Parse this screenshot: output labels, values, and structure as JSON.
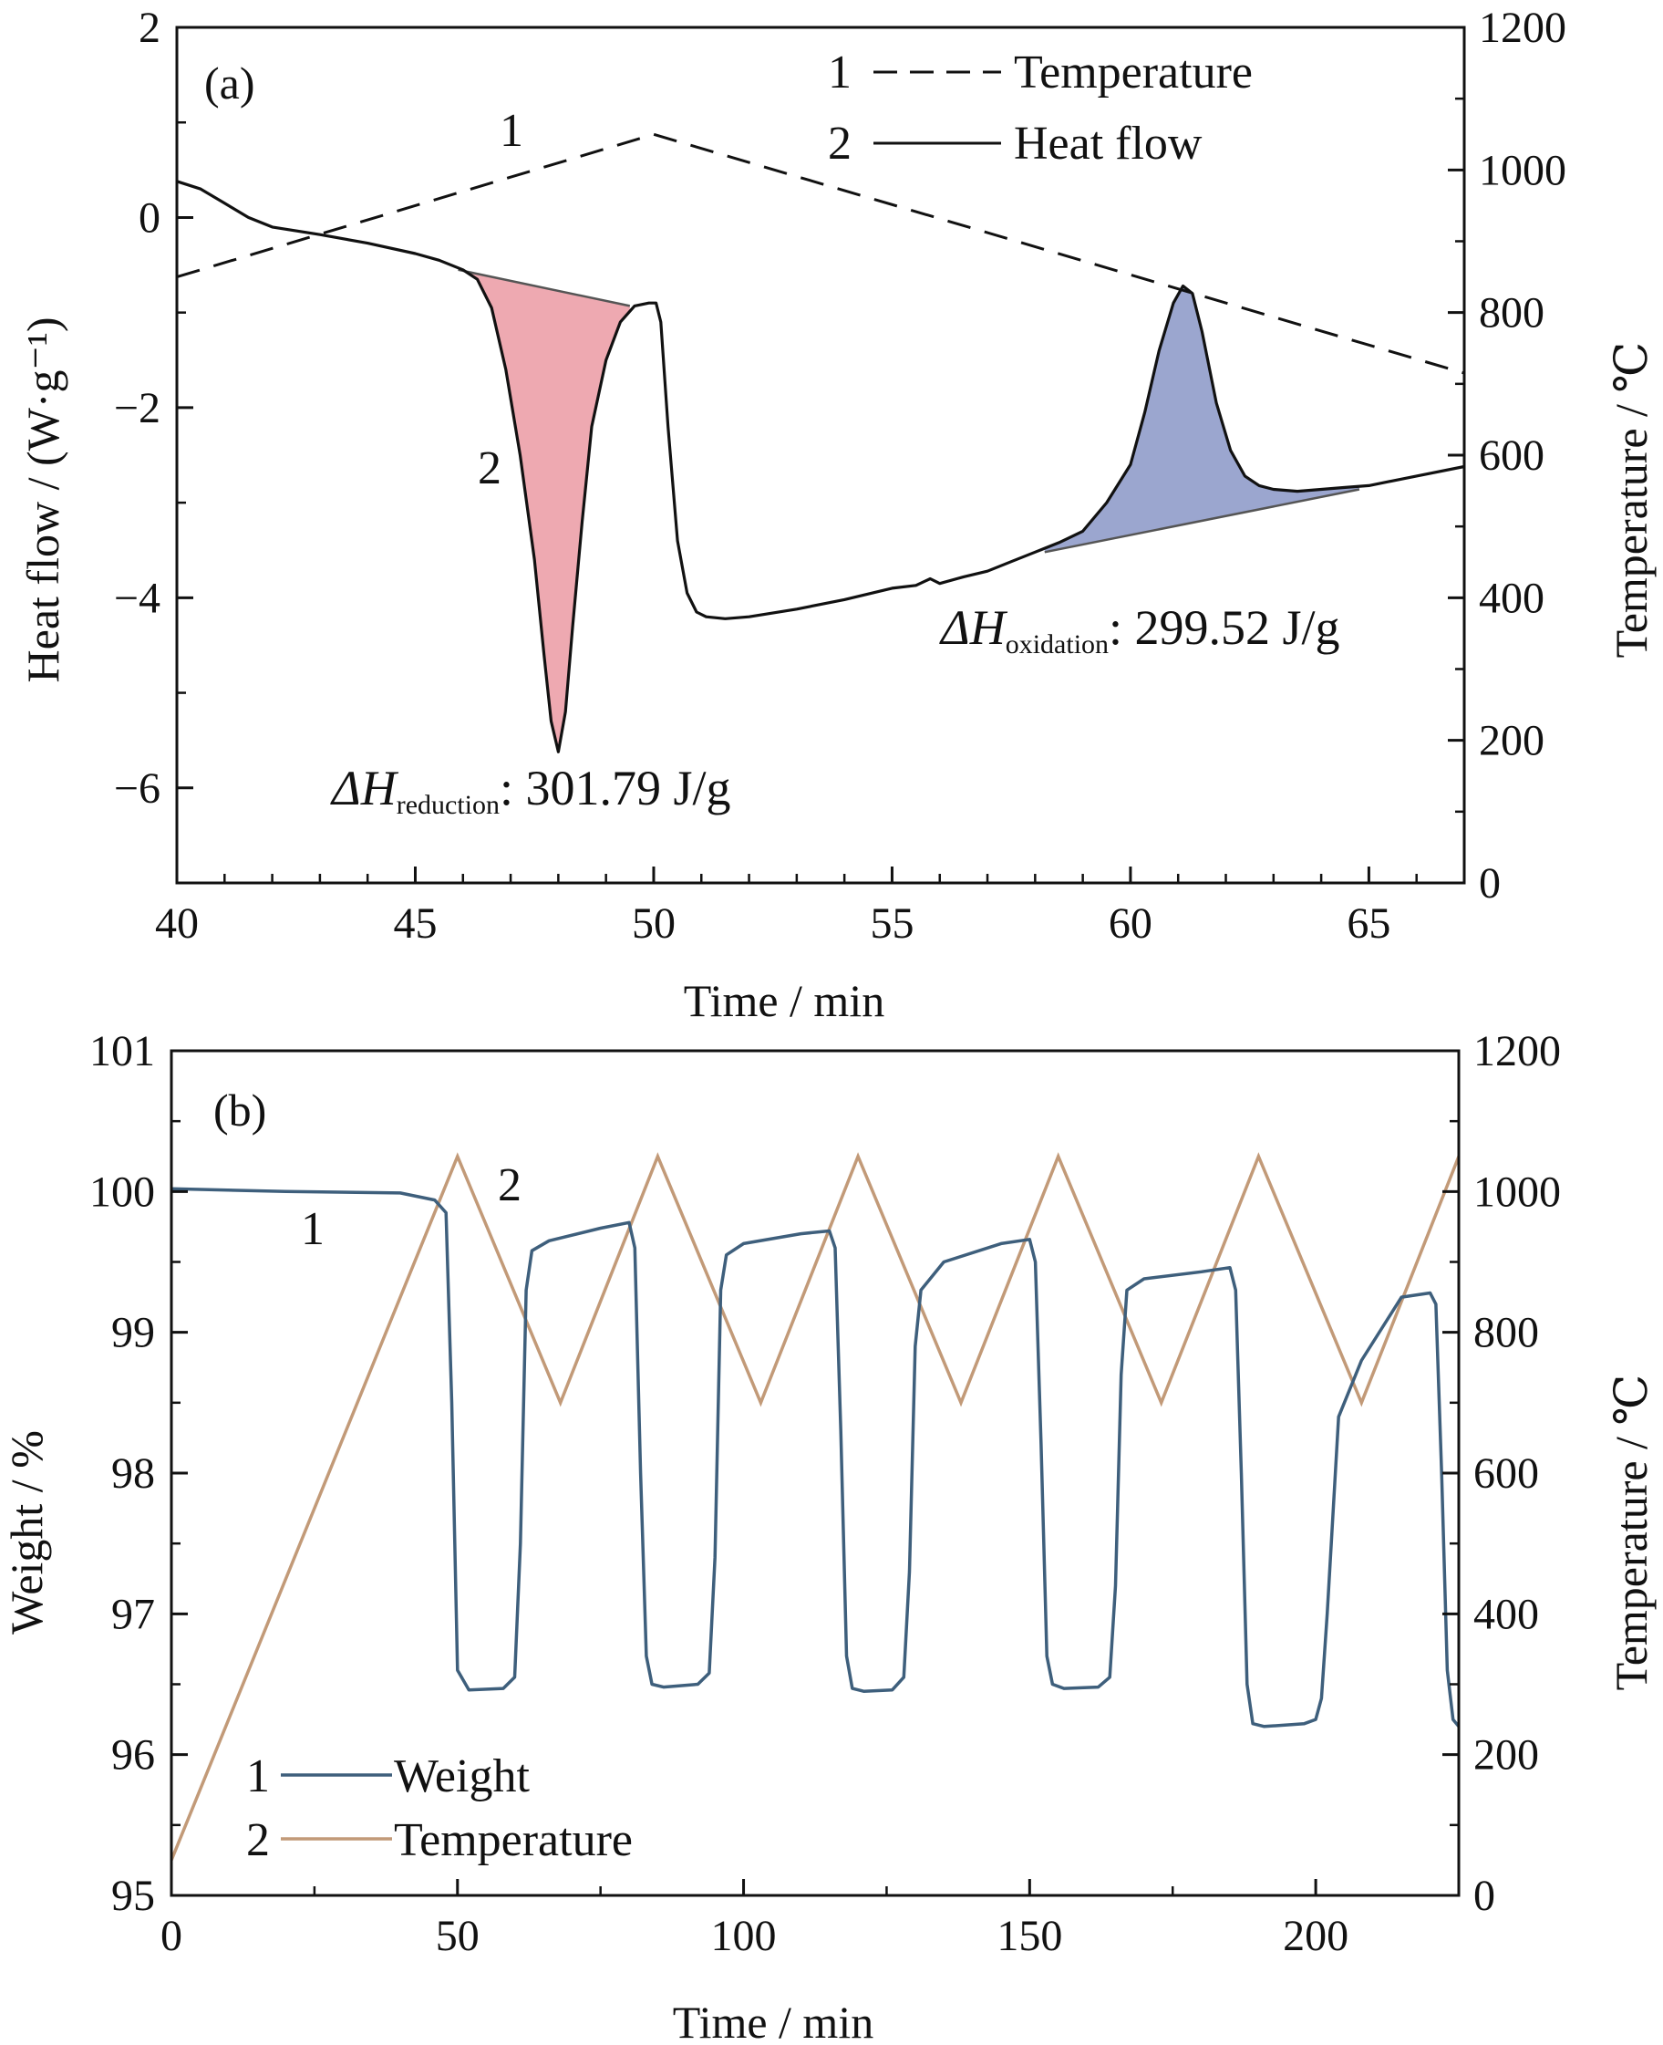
{
  "colors": {
    "axis": "#111111",
    "weight": "#3e5f7c",
    "temperature_b": "#c29a78",
    "reduction_fill": "#eea9b1",
    "oxidation_fill": "#9ba6cf"
  },
  "chart_data": [
    {
      "type": "line",
      "panel_label": "(a)",
      "xlabel": "Time / min",
      "ylabel": "Heat flow / (W·g⁻¹)",
      "y2label": "Temperature / ℃",
      "xlim": [
        40,
        67
      ],
      "ylim": [
        -7,
        2
      ],
      "y2lim": [
        0,
        1200
      ],
      "xticks": [
        40,
        45,
        50,
        55,
        60,
        65
      ],
      "xtick_labels": [
        "40",
        "45",
        "50",
        "55",
        "60",
        "65"
      ],
      "yticks": [
        2,
        0,
        -2,
        -4,
        -6
      ],
      "ytick_labels": [
        "2",
        "0",
        "−2",
        "−4",
        "−6"
      ],
      "y2ticks": [
        1200,
        1000,
        800,
        600,
        400,
        200,
        0
      ],
      "y2tick_labels": [
        "1200",
        "1000",
        "800",
        "600",
        "400",
        "200",
        "0"
      ],
      "series": [
        {
          "name": "Temperature",
          "label": "1",
          "axis": "right",
          "style": "dashed",
          "x": [
            40,
            50,
            67
          ],
          "y": [
            850,
            1050,
            715
          ]
        },
        {
          "name": "Heat flow",
          "label": "2",
          "axis": "left",
          "style": "solid",
          "x": [
            40,
            40.5,
            41,
            41.5,
            42,
            43,
            44,
            45,
            45.5,
            46,
            46.3,
            46.6,
            46.9,
            47.2,
            47.5,
            47.7,
            47.85,
            48,
            48.15,
            48.3,
            48.5,
            48.7,
            49,
            49.3,
            49.6,
            49.9,
            50.05,
            50.15,
            50.3,
            50.5,
            50.7,
            50.9,
            51.1,
            51.5,
            52,
            53,
            54,
            55,
            55.5,
            55.8,
            56,
            56.5,
            57,
            57.5,
            58,
            58.5,
            59,
            59.5,
            60,
            60.3,
            60.6,
            60.9,
            61.1,
            61.3,
            61.5,
            61.8,
            62.1,
            62.4,
            62.7,
            63,
            63.5,
            64,
            64.5,
            65,
            66,
            67
          ],
          "y": [
            0.38,
            0.3,
            0.15,
            0.0,
            -0.1,
            -0.18,
            -0.27,
            -0.38,
            -0.45,
            -0.55,
            -0.65,
            -0.95,
            -1.6,
            -2.5,
            -3.6,
            -4.6,
            -5.3,
            -5.62,
            -5.2,
            -4.3,
            -3.2,
            -2.2,
            -1.5,
            -1.1,
            -0.93,
            -0.9,
            -0.9,
            -1.1,
            -2.2,
            -3.4,
            -3.95,
            -4.15,
            -4.2,
            -4.22,
            -4.2,
            -4.12,
            -4.02,
            -3.9,
            -3.87,
            -3.8,
            -3.85,
            -3.78,
            -3.72,
            -3.62,
            -3.52,
            -3.42,
            -3.3,
            -3.0,
            -2.6,
            -2.05,
            -1.4,
            -0.9,
            -0.72,
            -0.8,
            -1.2,
            -1.95,
            -2.45,
            -2.72,
            -2.82,
            -2.86,
            -2.88,
            -2.86,
            -2.84,
            -2.82,
            -2.72,
            -2.62
          ]
        }
      ],
      "areas": [
        {
          "name": "reduction",
          "annotation_prefix": "ΔH",
          "annotation_subscript": "reduction",
          "annotation_value": ": 301.79 J/g",
          "baseline_x": [
            45.9,
            49.5
          ],
          "baseline_y": [
            -0.55,
            -0.93
          ]
        },
        {
          "name": "oxidation",
          "annotation_prefix": "ΔH",
          "annotation_subscript": "oxidation",
          "annotation_value": ": 299.52 J/g",
          "baseline_x": [
            58.2,
            64.8
          ],
          "baseline_y": [
            -3.52,
            -2.86
          ]
        }
      ],
      "curve_labels": [
        {
          "text": "1",
          "x": 47.8,
          "y": 0.75
        },
        {
          "text": "2",
          "x": 46.7,
          "y": -2.6
        }
      ]
    },
    {
      "type": "line",
      "panel_label": "(b)",
      "xlabel": "Time / min",
      "ylabel": "Weight / %",
      "y2label": "Temperature / ℃",
      "xlim": [
        0,
        225
      ],
      "ylim": [
        95,
        101
      ],
      "y2lim": [
        0,
        1200
      ],
      "xticks": [
        0,
        50,
        100,
        150,
        200
      ],
      "xtick_labels": [
        "0",
        "50",
        "100",
        "150",
        "200"
      ],
      "yticks": [
        101,
        100,
        99,
        98,
        97,
        96,
        95
      ],
      "ytick_labels": [
        "101",
        "100",
        "99",
        "98",
        "97",
        "96",
        "95"
      ],
      "y2ticks": [
        1200,
        1000,
        800,
        600,
        400,
        200,
        0
      ],
      "y2tick_labels": [
        "1200",
        "1000",
        "800",
        "600",
        "400",
        "200",
        "0"
      ],
      "series": [
        {
          "name": "Weight",
          "label": "1",
          "axis": "left",
          "x": [
            0,
            20,
            40,
            46,
            48,
            49,
            50,
            52,
            58,
            60,
            61,
            62,
            63,
            66,
            75,
            80,
            81,
            82,
            83,
            84,
            86,
            92,
            94,
            95,
            96,
            97,
            100,
            110,
            115,
            116,
            117,
            118,
            119,
            121,
            126,
            128,
            129,
            130,
            131,
            135,
            145,
            150,
            151,
            152,
            153,
            154,
            156,
            162,
            164,
            165,
            166,
            167,
            170,
            180,
            185,
            186,
            187,
            188,
            189,
            191,
            198,
            200,
            201,
            202,
            204,
            208,
            215,
            220,
            221,
            222,
            223,
            224,
            225
          ],
          "y": [
            100.02,
            100.0,
            99.99,
            99.94,
            99.85,
            98.5,
            96.6,
            96.46,
            96.47,
            96.55,
            97.5,
            99.3,
            99.58,
            99.65,
            99.74,
            99.78,
            99.6,
            98.0,
            96.7,
            96.5,
            96.48,
            96.5,
            96.58,
            97.4,
            99.3,
            99.55,
            99.63,
            99.7,
            99.72,
            99.6,
            98.3,
            96.7,
            96.47,
            96.45,
            96.46,
            96.55,
            97.3,
            98.9,
            99.3,
            99.5,
            99.63,
            99.66,
            99.5,
            98.2,
            96.7,
            96.5,
            96.47,
            96.48,
            96.55,
            97.2,
            98.7,
            99.3,
            99.38,
            99.43,
            99.46,
            99.3,
            98.0,
            96.5,
            96.22,
            96.2,
            96.22,
            96.25,
            96.4,
            97.0,
            98.4,
            98.8,
            99.25,
            99.28,
            99.2,
            98.0,
            96.6,
            96.25,
            96.2
          ]
        },
        {
          "name": "Temperature",
          "label": "2",
          "axis": "right",
          "x": [
            0,
            50,
            68,
            85,
            103,
            120,
            138,
            155,
            173,
            190,
            208,
            225
          ],
          "y": [
            50,
            1050,
            700,
            1050,
            700,
            1050,
            700,
            1050,
            700,
            1050,
            700,
            1050
          ]
        }
      ],
      "curve_labels": [
        {
          "text": "1",
          "x": 25,
          "y": 99.7
        },
        {
          "text": "2",
          "x": 60,
          "y": 100.05
        }
      ]
    }
  ]
}
